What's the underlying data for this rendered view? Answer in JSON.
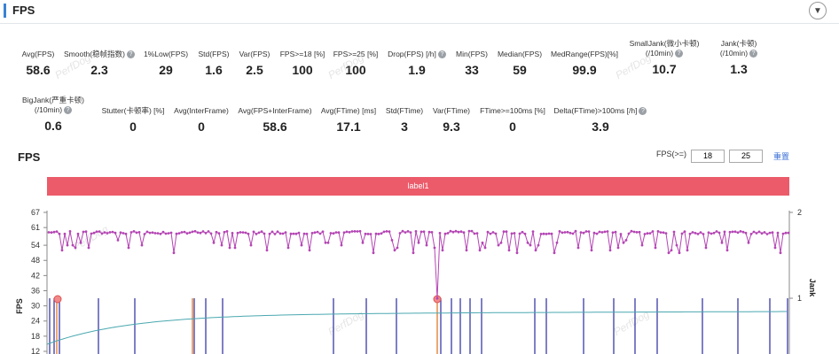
{
  "header": {
    "title": "FPS",
    "collapse_icon": "chevron-down-icon"
  },
  "stats_row1": [
    {
      "label": "Avg(FPS)",
      "value": "58.6",
      "help": false
    },
    {
      "label": "Smooth(稳帧指数)",
      "value": "2.3",
      "help": true
    },
    {
      "label": "1%Low(FPS)",
      "value": "29",
      "help": false
    },
    {
      "label": "Std(FPS)",
      "value": "1.6",
      "help": false
    },
    {
      "label": "Var(FPS)",
      "value": "2.5",
      "help": false
    },
    {
      "label": "FPS>=18 [%]",
      "value": "100",
      "help": false
    },
    {
      "label": "FPS>=25 [%]",
      "value": "100",
      "help": false
    },
    {
      "label": "Drop(FPS) [/h]",
      "value": "1.9",
      "help": true
    },
    {
      "label": "Min(FPS)",
      "value": "33",
      "help": false
    },
    {
      "label": "Median(FPS)",
      "value": "59",
      "help": false
    },
    {
      "label": "MedRange(FPS)[%]",
      "value": "99.9",
      "help": false
    },
    {
      "label": "SmallJank(微小卡顿)",
      "label2": "(/10min)",
      "value": "10.7",
      "help": true
    },
    {
      "label": "Jank(卡顿)",
      "label2": "(/10min)",
      "value": "1.3",
      "help": true
    }
  ],
  "stats_row2": [
    {
      "label": "BigJank(严重卡顿)",
      "label2": "(/10min)",
      "value": "0.6",
      "help": true
    },
    {
      "label": "Stutter(卡顿率) [%]",
      "value": "0",
      "help": false
    },
    {
      "label": "Avg(InterFrame)",
      "value": "0",
      "help": false
    },
    {
      "label": "Avg(FPS+InterFrame)",
      "value": "58.6",
      "help": false
    },
    {
      "label": "Avg(FTime) [ms]",
      "value": "17.1",
      "help": false
    },
    {
      "label": "Std(FTime)",
      "value": "3",
      "help": false
    },
    {
      "label": "Var(FTime)",
      "value": "9.3",
      "help": false
    },
    {
      "label": "FTime>=100ms [%]",
      "value": "0",
      "help": false
    },
    {
      "label": "Delta(FTime)>100ms [/h]",
      "value": "3.9",
      "help": true
    }
  ],
  "chart_header": {
    "title": "FPS",
    "threshold_label": "FPS(>=)",
    "threshold1": "18",
    "threshold2": "25",
    "reset_label": "重置"
  },
  "watermark": "PerfDog",
  "chart_data": {
    "type": "line",
    "band_label": "label1",
    "ylabel": "FPS",
    "y2label": "Jank",
    "yticks": [
      "67",
      "61",
      "54",
      "48",
      "42",
      "36",
      "30",
      "24",
      "18",
      "12"
    ],
    "y2ticks": [
      "2",
      "1"
    ],
    "ylim": [
      12,
      67
    ],
    "y2lim": [
      0,
      2
    ],
    "series": [
      {
        "name": "FPS",
        "color": "#b445b4",
        "typical": 59,
        "dips": [
          54,
          55,
          52,
          53,
          51,
          56,
          54,
          55,
          53,
          52
        ],
        "min_point": 33
      },
      {
        "name": "Jank",
        "color": "#3a3aa8"
      },
      {
        "name": "BigJank",
        "color": "#e07a2a"
      },
      {
        "name": "Smooth",
        "color": "#4aa8b0"
      }
    ]
  },
  "colors": {
    "accent": "#3b82d6",
    "band": "#ec5b6a",
    "fps_line": "#b445b4",
    "jank": "#3a3aa8",
    "bigjank": "#e07a2a",
    "smooth": "#4aa8b0",
    "link": "#3b6fd6"
  }
}
